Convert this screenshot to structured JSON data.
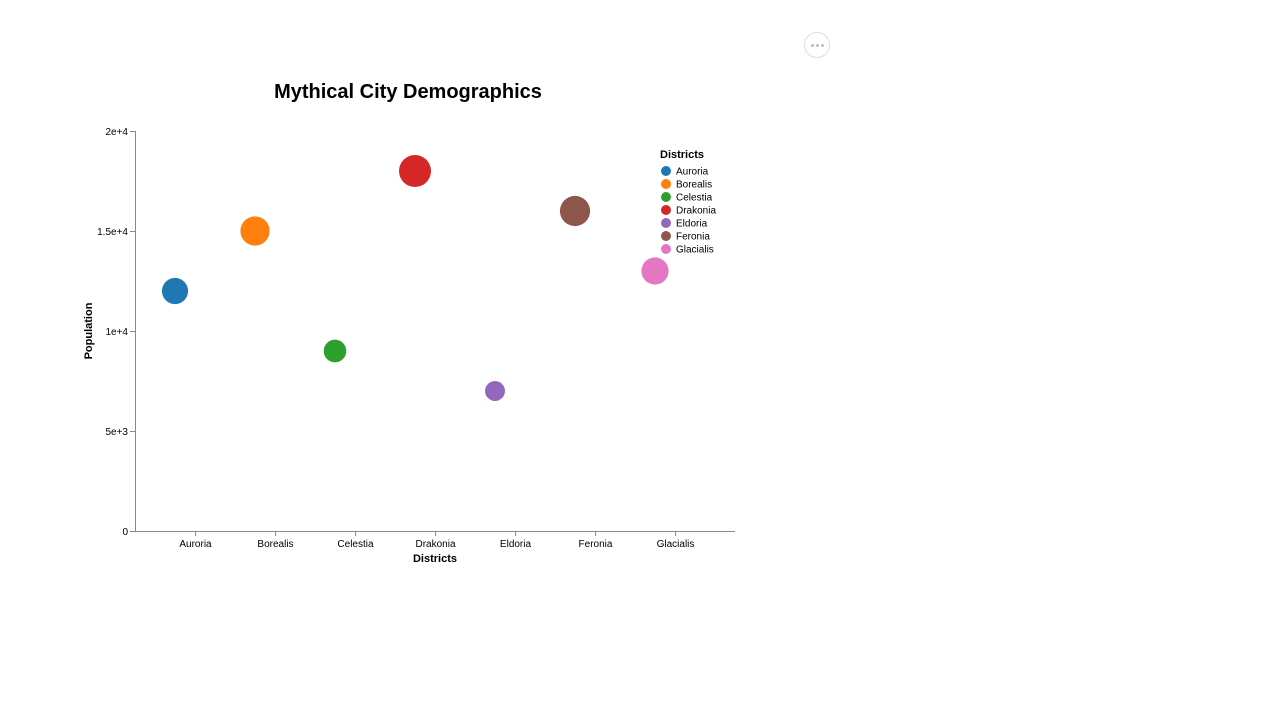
{
  "actions_menu": {
    "icon": "more-horizontal-icon"
  },
  "chart_data": {
    "type": "scatter",
    "title": "Mythical City Demographics",
    "xlabel": "Districts",
    "ylabel": "Population",
    "categories": [
      "Auroria",
      "Borealis",
      "Celestia",
      "Drakonia",
      "Eldoria",
      "Feronia",
      "Glacialis"
    ],
    "values": [
      12000,
      15000,
      9000,
      18000,
      7000,
      16000,
      13000
    ],
    "colors": [
      "#1f77b4",
      "#ff7f0e",
      "#2ca02c",
      "#d62728",
      "#9467bd",
      "#8c564b",
      "#e377c2"
    ],
    "ylim": [
      0,
      20000
    ],
    "yticks": [
      0,
      5000,
      10000,
      15000,
      20000
    ],
    "ytick_labels": [
      "0",
      "5e+3",
      "1e+4",
      "1.5e+4",
      "2e+4"
    ],
    "grid": false,
    "legend": {
      "title": "Districts",
      "position": "top-right",
      "entries": [
        "Auroria",
        "Borealis",
        "Celestia",
        "Drakonia",
        "Eldoria",
        "Feronia",
        "Glacialis"
      ]
    }
  }
}
